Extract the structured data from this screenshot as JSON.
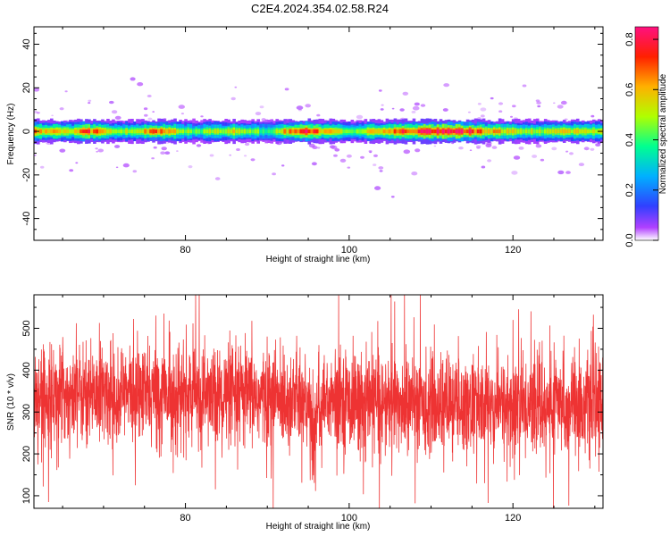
{
  "title": "C2E4.2024.354.02.58.R24",
  "chart_data": [
    {
      "type": "heatmap",
      "xlabel": "Height of straight line (km)",
      "ylabel": "Frequency (Hz)",
      "xlim": [
        61.5,
        131
      ],
      "ylim": [
        -50,
        48
      ],
      "xticks": [
        80,
        100,
        120
      ],
      "yticks": [
        -40,
        -20,
        0,
        20,
        40
      ],
      "colorbar": {
        "label": "Normalized spectral amplitude",
        "range": [
          0.0,
          0.85
        ],
        "ticks": [
          0.0,
          0.2,
          0.4,
          0.6,
          0.8
        ],
        "tick_labels": [
          "0.0",
          "0.2",
          "0.4",
          "0.6",
          "0.8"
        ],
        "colors": [
          "#ffffff",
          "#a020f0",
          "#3040ff",
          "#00c8ff",
          "#00ff80",
          "#c8ff00",
          "#ffb000",
          "#ff2000",
          "#ff1080"
        ]
      },
      "band": {
        "center_hz": 0,
        "half_width_hz": 3.5,
        "peaks": [
          {
            "x": 62,
            "value": 0.62
          },
          {
            "x": 66,
            "value": 0.5
          },
          {
            "x": 68,
            "value": 0.72
          },
          {
            "x": 72,
            "value": 0.45
          },
          {
            "x": 77,
            "value": 0.68
          },
          {
            "x": 81,
            "value": 0.42
          },
          {
            "x": 86,
            "value": 0.55
          },
          {
            "x": 90,
            "value": 0.38
          },
          {
            "x": 92,
            "value": 0.58
          },
          {
            "x": 94.5,
            "value": 0.78
          },
          {
            "x": 97,
            "value": 0.6
          },
          {
            "x": 101,
            "value": 0.44
          },
          {
            "x": 104,
            "value": 0.62
          },
          {
            "x": 106.5,
            "value": 0.7
          },
          {
            "x": 108,
            "value": 0.75
          },
          {
            "x": 110,
            "value": 0.82
          },
          {
            "x": 112,
            "value": 0.84
          },
          {
            "x": 114,
            "value": 0.78
          },
          {
            "x": 117,
            "value": 0.6
          },
          {
            "x": 121,
            "value": 0.52
          },
          {
            "x": 124,
            "value": 0.45
          },
          {
            "x": 127,
            "value": 0.55
          },
          {
            "x": 130,
            "value": 0.5
          }
        ]
      }
    },
    {
      "type": "line",
      "xlabel": "Height of straight line (km)",
      "ylabel": "SNR (10 * v/v)",
      "xlim": [
        61.5,
        131
      ],
      "ylim": [
        70,
        580
      ],
      "xticks": [
        80,
        100,
        120
      ],
      "yticks": [
        100,
        200,
        300,
        400,
        500
      ],
      "series": [
        {
          "color": "#ee3333",
          "x_start": 61.5,
          "x_end": 131,
          "mean_profile": [
            {
              "x": 61.5,
              "value": 340
            },
            {
              "x": 70,
              "value": 345
            },
            {
              "x": 80,
              "value": 340
            },
            {
              "x": 90,
              "value": 335
            },
            {
              "x": 94,
              "value": 330
            },
            {
              "x": 95.5,
              "value": 300
            },
            {
              "x": 97,
              "value": 330
            },
            {
              "x": 105,
              "value": 320
            },
            {
              "x": 115,
              "value": 315
            },
            {
              "x": 125,
              "value": 315
            },
            {
              "x": 131,
              "value": 320
            }
          ],
          "min": 70,
          "max": 580
        }
      ]
    }
  ]
}
